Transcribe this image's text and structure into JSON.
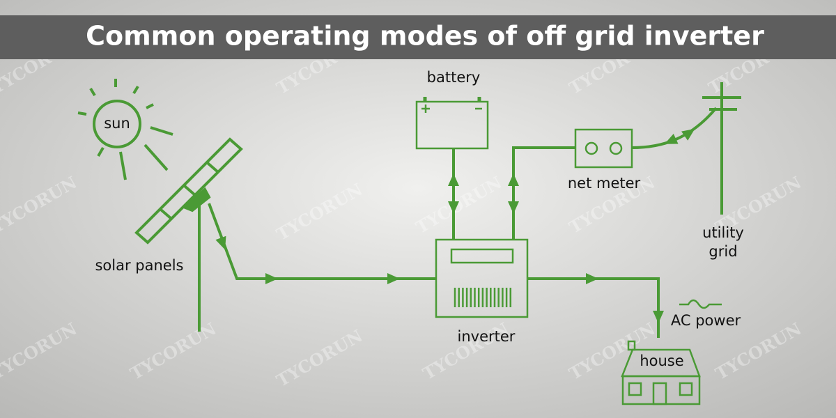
{
  "header": {
    "title": "Common operating modes of off grid inverter"
  },
  "watermark": "TYCORUN",
  "nodes": [
    {
      "id": "sun",
      "label": "sun"
    },
    {
      "id": "solar-panels",
      "label": "solar panels"
    },
    {
      "id": "battery",
      "label": "battery"
    },
    {
      "id": "inverter",
      "label": "inverter"
    },
    {
      "id": "net-meter",
      "label": "net meter"
    },
    {
      "id": "utility-grid",
      "label": "utility grid"
    },
    {
      "id": "ac-power",
      "label": "AC power"
    },
    {
      "id": "house",
      "label": "house"
    }
  ]
}
